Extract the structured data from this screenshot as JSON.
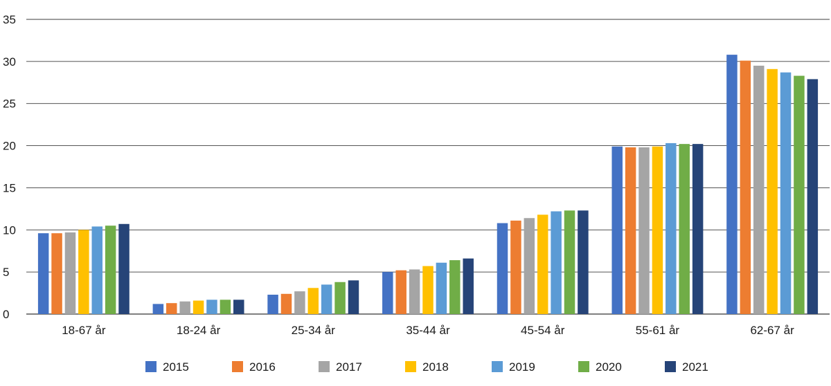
{
  "chart_data": {
    "type": "bar",
    "title": "",
    "xlabel": "",
    "ylabel": "",
    "ylim": [
      0,
      35
    ],
    "yticks": [
      0,
      5,
      10,
      15,
      20,
      25,
      30,
      35
    ],
    "grid": "horizontal",
    "legend_position": "bottom",
    "categories": [
      "18-67 år",
      "18-24 år",
      "25-34 år",
      "35-44 år",
      "45-54 år",
      "55-61 år",
      "62-67 år"
    ],
    "series": [
      {
        "name": "2015",
        "color": "#4472c4",
        "values": [
          9.6,
          1.2,
          2.3,
          5.0,
          10.8,
          19.9,
          30.8
        ]
      },
      {
        "name": "2016",
        "color": "#ed7d31",
        "values": [
          9.6,
          1.3,
          2.4,
          5.2,
          11.1,
          19.8,
          30.1
        ]
      },
      {
        "name": "2017",
        "color": "#a5a5a5",
        "values": [
          9.7,
          1.5,
          2.7,
          5.3,
          11.4,
          19.8,
          29.5
        ]
      },
      {
        "name": "2018",
        "color": "#ffc000",
        "values": [
          10.0,
          1.6,
          3.1,
          5.7,
          11.8,
          19.9,
          29.1
        ]
      },
      {
        "name": "2019",
        "color": "#5b9bd5",
        "values": [
          10.4,
          1.7,
          3.5,
          6.1,
          12.2,
          20.3,
          28.7
        ]
      },
      {
        "name": "2020",
        "color": "#70ad47",
        "values": [
          10.5,
          1.7,
          3.8,
          6.4,
          12.3,
          20.2,
          28.3
        ]
      },
      {
        "name": "2021",
        "color": "#264478",
        "values": [
          10.7,
          1.7,
          4.0,
          6.6,
          12.3,
          20.2,
          27.9
        ]
      }
    ]
  }
}
